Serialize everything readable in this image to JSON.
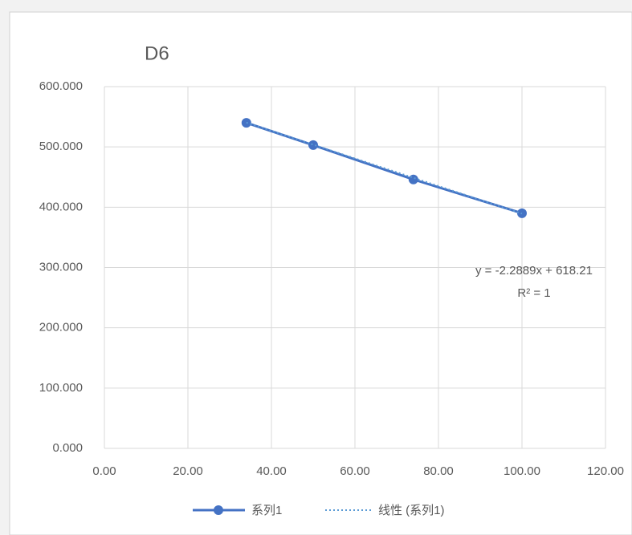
{
  "chart_data": {
    "type": "line",
    "title": "D6",
    "x": [
      34,
      50,
      74,
      100
    ],
    "series": [
      {
        "name": "系列1",
        "color": "#4472c4",
        "values": [
          540,
          503,
          446,
          390
        ]
      }
    ],
    "trendline": {
      "name": "线性 (系列1)",
      "slope": -2.2889,
      "intercept": 618.21,
      "label": "y = -2.2889x + 618.21",
      "r_squared_label": "R² = 1"
    },
    "xlim": [
      0,
      120
    ],
    "xticks": [
      {
        "value": 0,
        "label": "0.00"
      },
      {
        "value": 20,
        "label": "20.00"
      },
      {
        "value": 40,
        "label": "40.00"
      },
      {
        "value": 60,
        "label": "60.00"
      },
      {
        "value": 80,
        "label": "80.00"
      },
      {
        "value": 100,
        "label": "100.00"
      },
      {
        "value": 120,
        "label": "120.00"
      }
    ],
    "ylim": [
      0,
      600
    ],
    "yticks": [
      {
        "value": 0,
        "label": "0.000"
      },
      {
        "value": 100,
        "label": "100.000"
      },
      {
        "value": 200,
        "label": "200.000"
      },
      {
        "value": 300,
        "label": "300.000"
      },
      {
        "value": 400,
        "label": "400.000"
      },
      {
        "value": 500,
        "label": "500.000"
      },
      {
        "value": 600,
        "label": "600.000"
      }
    ],
    "grid": true,
    "legend": "bottom"
  }
}
